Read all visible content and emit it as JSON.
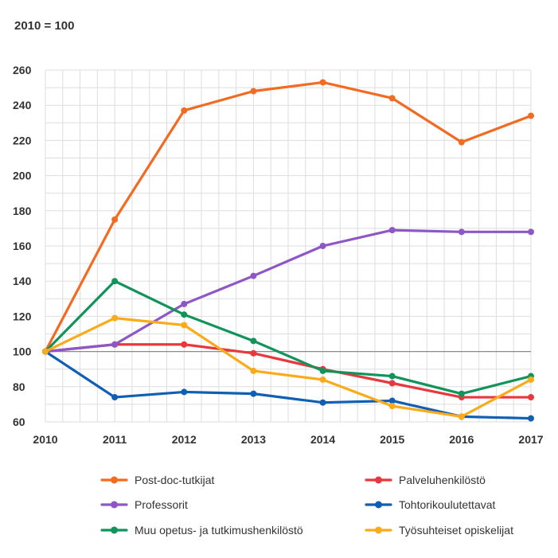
{
  "note": "2010 = 100",
  "chart_data": {
    "type": "line",
    "title": "",
    "xlabel": "",
    "ylabel": "",
    "x": [
      "2010",
      "2011",
      "2012",
      "2013",
      "2014",
      "2015",
      "2016",
      "2017"
    ],
    "ylim": [
      60,
      260
    ],
    "yticks": [
      60,
      80,
      100,
      120,
      140,
      160,
      180,
      200,
      220,
      240,
      260
    ],
    "reference_line": 100,
    "grid": true,
    "legend_position": "bottom",
    "series": [
      {
        "name": "Post-doc-tutkijat",
        "color": "#f26b22",
        "values": [
          100,
          175,
          237,
          248,
          253,
          244,
          219,
          234
        ]
      },
      {
        "name": "Palveluhenkilöstö",
        "color": "#e8383d",
        "values": [
          100,
          104,
          104,
          99,
          90,
          82,
          74,
          74
        ]
      },
      {
        "name": "Professorit",
        "color": "#8e57c8",
        "values": [
          100,
          104,
          127,
          143,
          160,
          169,
          168,
          168
        ]
      },
      {
        "name": "Tohtorikoulutettavat",
        "color": "#0f5fb4",
        "values": [
          100,
          74,
          77,
          76,
          71,
          72,
          63,
          62
        ]
      },
      {
        "name": "Muu opetus- ja tutkimushenkilöstö",
        "color": "#12935b",
        "values": [
          100,
          140,
          121,
          106,
          89,
          86,
          76,
          86
        ]
      },
      {
        "name": "Työsuhteiset opiskelijat",
        "color": "#fbab18",
        "values": [
          100,
          119,
          115,
          89,
          84,
          69,
          63,
          84
        ]
      }
    ]
  }
}
